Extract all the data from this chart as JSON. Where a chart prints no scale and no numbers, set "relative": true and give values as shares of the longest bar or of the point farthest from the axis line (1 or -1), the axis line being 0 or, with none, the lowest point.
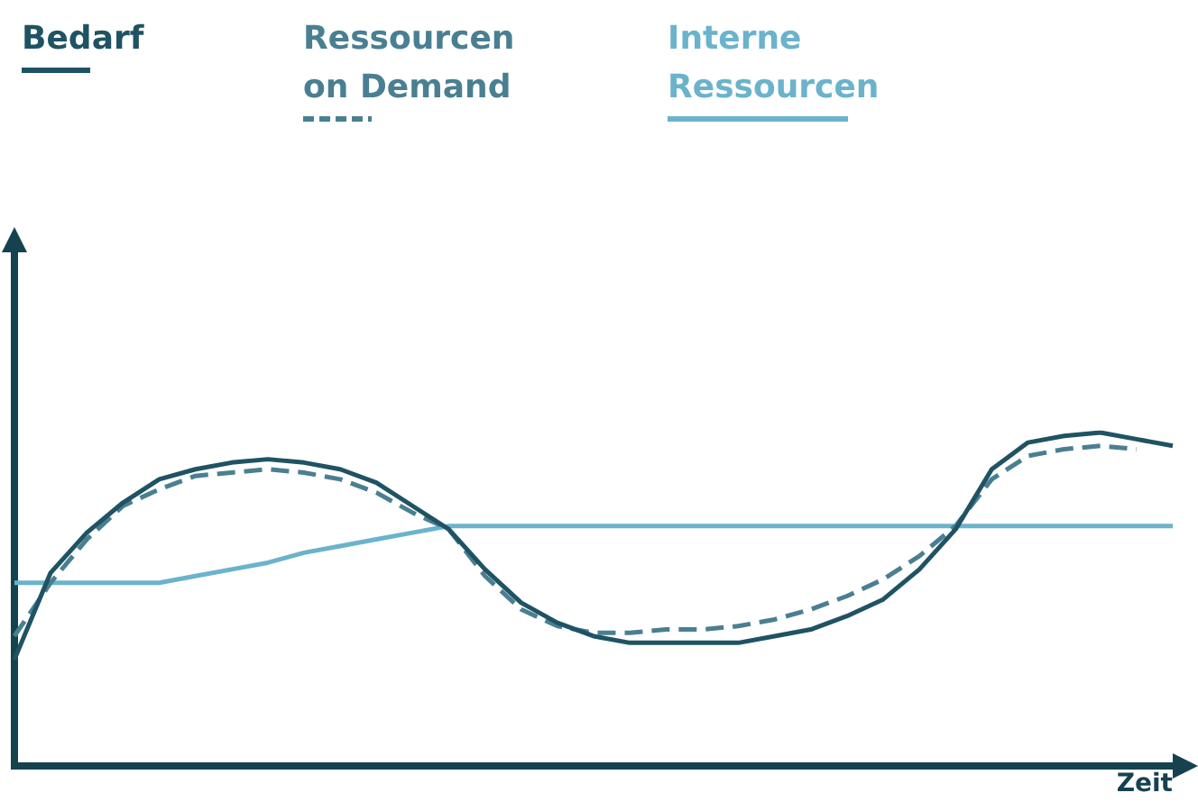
{
  "chart_data": {
    "type": "line",
    "relative": true,
    "xlabel": "Zeit",
    "legend": "top left",
    "tick_labels": false,
    "categories": [
      null,
      null,
      null,
      null,
      null,
      null,
      null,
      null,
      null,
      null,
      null,
      null,
      null,
      null,
      null,
      null,
      null,
      null,
      null,
      null,
      null,
      null,
      null,
      null,
      null,
      null,
      null,
      null,
      null,
      null,
      null,
      null,
      null
    ],
    "series": [
      {
        "name": "Bedarf",
        "color": "#1f5363",
        "line_style": "solid",
        "values": [
          0.32,
          0.58,
          0.7,
          0.79,
          0.86,
          0.89,
          0.91,
          0.92,
          0.91,
          0.89,
          0.85,
          0.78,
          0.71,
          0.59,
          0.49,
          0.43,
          0.39,
          0.37,
          0.37,
          0.37,
          0.37,
          0.39,
          0.41,
          0.45,
          0.5,
          0.59,
          0.71,
          0.89,
          0.97,
          0.99,
          1,
          0.98,
          0.96
        ]
      },
      {
        "name": "Ressourcen on Demand",
        "color": "#4a7f92",
        "line_style": "dashed",
        "values": [
          0.39,
          0.55,
          0.68,
          0.78,
          0.83,
          0.87,
          0.88,
          0.89,
          0.88,
          0.86,
          0.82,
          0.76,
          0.71,
          0.57,
          0.47,
          0.42,
          0.4,
          0.4,
          0.41,
          0.41,
          0.42,
          0.44,
          0.47,
          0.51,
          0.56,
          0.63,
          0.72,
          0.86,
          0.93,
          0.95,
          0.96,
          0.95,
          null
        ]
      },
      {
        "name": "Interne Ressourcen",
        "color": "#6bb3cc",
        "line_style": "solid",
        "values": [
          0.55,
          0.55,
          0.55,
          0.55,
          0.55,
          0.57,
          0.59,
          0.61,
          0.64,
          0.66,
          0.68,
          0.7,
          0.72,
          0.72,
          0.72,
          0.72,
          0.72,
          0.72,
          0.72,
          0.72,
          0.72,
          0.72,
          0.72,
          0.72,
          0.72,
          0.72,
          0.72,
          0.72,
          0.72,
          0.72,
          0.72,
          0.72,
          0.72
        ]
      }
    ]
  }
}
